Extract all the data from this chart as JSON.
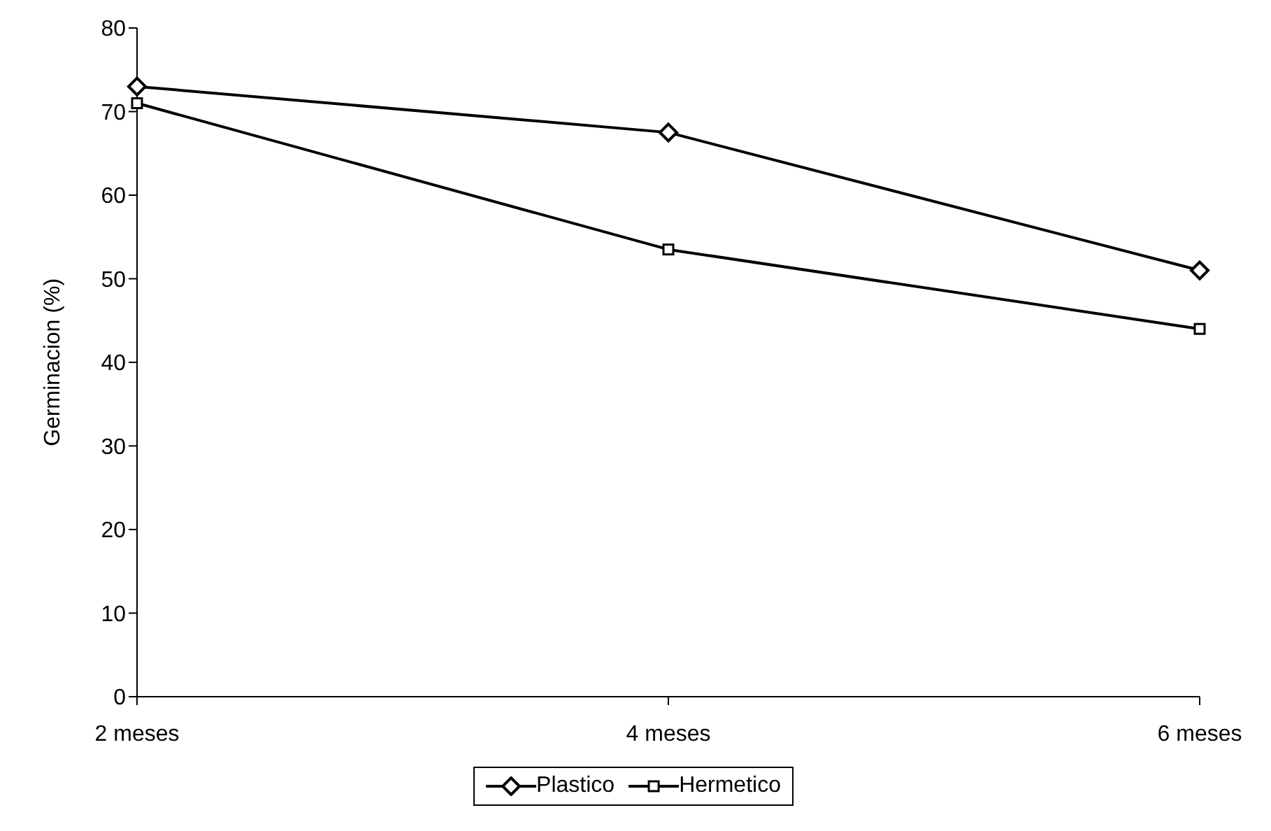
{
  "chart_data": {
    "type": "line",
    "ylabel": "Germinacion (%)",
    "categories": [
      "2 meses",
      "4 meses",
      "6 meses"
    ],
    "series": [
      {
        "name": "Plastico",
        "color": "#000000",
        "values": [
          73,
          67.5,
          51
        ],
        "marker": "diamond"
      },
      {
        "name": "Hermetico",
        "color": "#000000",
        "values": [
          71,
          53.5,
          44
        ],
        "marker": "square"
      }
    ],
    "ylim": [
      0,
      80
    ],
    "yticks": [
      0,
      10,
      20,
      30,
      40,
      50,
      60,
      70,
      80
    ],
    "grid": false,
    "legend": "bottom",
    "line_style": "solid"
  }
}
